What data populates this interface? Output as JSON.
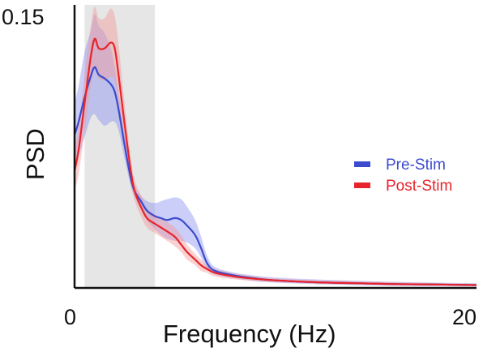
{
  "chart_data": {
    "type": "line",
    "title": "",
    "xlabel": "Frequency (Hz)",
    "ylabel": "PSD",
    "xlim": [
      0,
      20
    ],
    "ylim": [
      0,
      0.15
    ],
    "x_ticks": [
      "0",
      "20"
    ],
    "y_ticks": [
      "0.15"
    ],
    "grid": false,
    "legend_position": "center-right",
    "highlight_band": {
      "x_range": [
        0.5,
        4
      ],
      "color": "#e6e6e6"
    },
    "series": [
      {
        "name": "Pre-Stim",
        "color": "#3b4bcf",
        "band_color": "#8b93f0",
        "x": [
          0,
          0.2,
          0.5,
          0.8,
          1.0,
          1.2,
          1.5,
          1.8,
          2.0,
          2.2,
          2.5,
          2.8,
          3.0,
          3.3,
          3.6,
          4.0,
          4.3,
          4.6,
          5.0,
          5.3,
          5.6,
          6.0,
          6.3,
          6.6,
          7.0,
          8.0,
          9.0,
          10,
          12,
          14,
          16,
          18,
          20
        ],
        "mean": [
          0.081,
          0.088,
          0.101,
          0.112,
          0.117,
          0.113,
          0.111,
          0.108,
          0.104,
          0.094,
          0.075,
          0.058,
          0.051,
          0.046,
          0.041,
          0.038,
          0.037,
          0.036,
          0.037,
          0.036,
          0.033,
          0.028,
          0.021,
          0.013,
          0.009,
          0.0065,
          0.005,
          0.004,
          0.003,
          0.0025,
          0.002,
          0.0018,
          0.0015
        ],
        "upper": [
          0.098,
          0.107,
          0.125,
          0.136,
          0.145,
          0.139,
          0.135,
          0.127,
          0.117,
          0.102,
          0.081,
          0.061,
          0.054,
          0.049,
          0.046,
          0.045,
          0.046,
          0.047,
          0.048,
          0.047,
          0.043,
          0.036,
          0.027,
          0.017,
          0.011,
          0.008,
          0.0065,
          0.0055,
          0.0045,
          0.0038,
          0.0032,
          0.0028,
          0.0025
        ],
        "lower": [
          0.065,
          0.07,
          0.08,
          0.09,
          0.092,
          0.089,
          0.086,
          0.088,
          0.088,
          0.083,
          0.068,
          0.054,
          0.048,
          0.042,
          0.036,
          0.031,
          0.028,
          0.026,
          0.025,
          0.025,
          0.024,
          0.021,
          0.016,
          0.01,
          0.007,
          0.005,
          0.0035,
          0.0028,
          0.002,
          0.0015,
          0.0012,
          0.001,
          0.0008
        ]
      },
      {
        "name": "Post-Stim",
        "color": "#e8232b",
        "band_color": "#f39a9a",
        "x": [
          0,
          0.2,
          0.5,
          0.8,
          1.0,
          1.2,
          1.5,
          1.8,
          2.0,
          2.2,
          2.5,
          2.8,
          3.0,
          3.3,
          3.6,
          4.0,
          4.3,
          4.6,
          5.0,
          5.3,
          5.6,
          6.0,
          6.3,
          6.6,
          7.0,
          8.0,
          9.0,
          10,
          12,
          14,
          16,
          18,
          20
        ],
        "mean": [
          0.062,
          0.073,
          0.098,
          0.122,
          0.132,
          0.127,
          0.127,
          0.13,
          0.127,
          0.112,
          0.086,
          0.062,
          0.051,
          0.043,
          0.037,
          0.034,
          0.032,
          0.03,
          0.027,
          0.023,
          0.019,
          0.015,
          0.012,
          0.01,
          0.008,
          0.006,
          0.0048,
          0.004,
          0.003,
          0.0025,
          0.002,
          0.0018,
          0.0015
        ],
        "upper": [
          0.074,
          0.086,
          0.113,
          0.138,
          0.149,
          0.143,
          0.143,
          0.148,
          0.144,
          0.128,
          0.097,
          0.069,
          0.057,
          0.049,
          0.042,
          0.039,
          0.037,
          0.035,
          0.032,
          0.028,
          0.023,
          0.018,
          0.015,
          0.012,
          0.01,
          0.0075,
          0.006,
          0.005,
          0.004,
          0.0035,
          0.003,
          0.0026,
          0.0022
        ],
        "lower": [
          0.052,
          0.06,
          0.083,
          0.106,
          0.116,
          0.111,
          0.11,
          0.112,
          0.11,
          0.097,
          0.075,
          0.055,
          0.046,
          0.038,
          0.032,
          0.029,
          0.027,
          0.025,
          0.022,
          0.019,
          0.015,
          0.012,
          0.009,
          0.008,
          0.006,
          0.0045,
          0.0036,
          0.003,
          0.0022,
          0.0018,
          0.0014,
          0.0012,
          0.001
        ]
      }
    ]
  }
}
